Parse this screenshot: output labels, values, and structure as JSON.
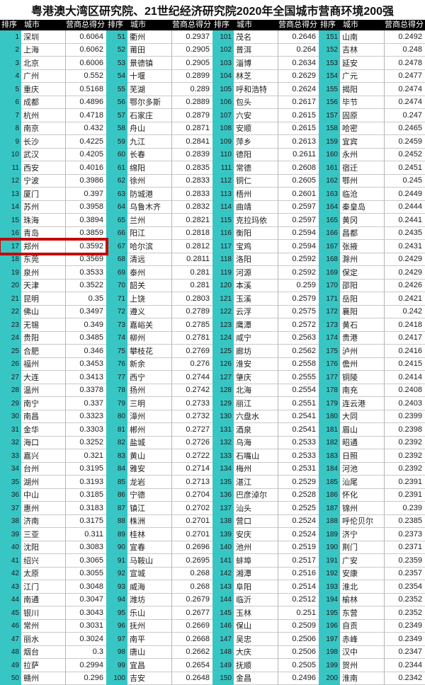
{
  "title": "粤港澳大湾区研究院、21世纪经济研究院2020年全国城市营商环境200强",
  "headers": {
    "rank": "排序",
    "city": "城市",
    "score": "营商总得分"
  },
  "colors": {
    "teal_rank_column": "#38c6c4",
    "header_bg": "#000000",
    "header_text": "#ffffff",
    "row_bg": "#ffffff",
    "highlight_box": "#c40606"
  },
  "highlight": {
    "rank": 17,
    "city": "郑州",
    "score": "0.3592"
  },
  "row_fields": [
    "rank",
    "city",
    "score"
  ],
  "groups": [
    {
      "name": "ranks-1-50",
      "rows": [
        [
          1,
          "深圳",
          "0.6064"
        ],
        [
          2,
          "上海",
          "0.6062"
        ],
        [
          3,
          "北京",
          "0.6006"
        ],
        [
          4,
          "广州",
          "0.552"
        ],
        [
          5,
          "重庆",
          "0.5168"
        ],
        [
          6,
          "成都",
          "0.4896"
        ],
        [
          7,
          "杭州",
          "0.4718"
        ],
        [
          8,
          "南京",
          "0.432"
        ],
        [
          9,
          "长沙",
          "0.4225"
        ],
        [
          10,
          "武汉",
          "0.4205"
        ],
        [
          11,
          "西安",
          "0.4016"
        ],
        [
          12,
          "宁波",
          "0.3986"
        ],
        [
          13,
          "厦门",
          "0.397"
        ],
        [
          14,
          "苏州",
          "0.3958"
        ],
        [
          15,
          "珠海",
          "0.3894"
        ],
        [
          16,
          "青岛",
          "0.3859"
        ],
        [
          17,
          "郑州",
          "0.3592"
        ],
        [
          18,
          "东莞",
          "0.3569"
        ],
        [
          19,
          "泉州",
          "0.3533"
        ],
        [
          20,
          "天津",
          "0.3522"
        ],
        [
          21,
          "昆明",
          "0.35"
        ],
        [
          22,
          "佛山",
          "0.3497"
        ],
        [
          23,
          "无锡",
          "0.349"
        ],
        [
          24,
          "贵阳",
          "0.3485"
        ],
        [
          25,
          "合肥",
          "0.346"
        ],
        [
          26,
          "福州",
          "0.3453"
        ],
        [
          27,
          "大连",
          "0.3413"
        ],
        [
          28,
          "温州",
          "0.3378"
        ],
        [
          29,
          "南宁",
          "0.337"
        ],
        [
          30,
          "南昌",
          "0.3323"
        ],
        [
          31,
          "金华",
          "0.3303"
        ],
        [
          32,
          "海口",
          "0.3252"
        ],
        [
          33,
          "嘉兴",
          "0.321"
        ],
        [
          34,
          "台州",
          "0.3195"
        ],
        [
          35,
          "湖州",
          "0.3193"
        ],
        [
          36,
          "中山",
          "0.3185"
        ],
        [
          37,
          "惠州",
          "0.3183"
        ],
        [
          38,
          "济南",
          "0.3175"
        ],
        [
          39,
          "三亚",
          "0.311"
        ],
        [
          40,
          "沈阳",
          "0.3083"
        ],
        [
          41,
          "绍兴",
          "0.3065"
        ],
        [
          42,
          "太原",
          "0.3055"
        ],
        [
          43,
          "江门",
          "0.3048"
        ],
        [
          44,
          "南通",
          "0.3047"
        ],
        [
          45,
          "银川",
          "0.3043"
        ],
        [
          46,
          "常州",
          "0.3031"
        ],
        [
          47,
          "丽水",
          "0.3024"
        ],
        [
          48,
          "烟台",
          "0.3"
        ],
        [
          49,
          "拉萨",
          "0.2994"
        ],
        [
          50,
          "赣州",
          "0.296"
        ]
      ]
    },
    {
      "name": "ranks-51-100",
      "rows": [
        [
          51,
          "衢州",
          "0.2937"
        ],
        [
          52,
          "莆田",
          "0.2905"
        ],
        [
          53,
          "景德镇",
          "0.2905"
        ],
        [
          54,
          "十堰",
          "0.2899"
        ],
        [
          55,
          "芜湖",
          "0.289"
        ],
        [
          56,
          "鄂尔多斯",
          "0.2889"
        ],
        [
          57,
          "石家庄",
          "0.2879"
        ],
        [
          58,
          "舟山",
          "0.2871"
        ],
        [
          59,
          "九江",
          "0.2841"
        ],
        [
          60,
          "长春",
          "0.2839"
        ],
        [
          61,
          "绵阳",
          "0.2835"
        ],
        [
          62,
          "徐州",
          "0.2833"
        ],
        [
          63,
          "防城港",
          "0.2833"
        ],
        [
          64,
          "乌鲁木齐",
          "0.2832"
        ],
        [
          65,
          "兰州",
          "0.2821"
        ],
        [
          66,
          "阳江",
          "0.2818"
        ],
        [
          67,
          "哈尔滨",
          "0.2812"
        ],
        [
          68,
          "清远",
          "0.2811"
        ],
        [
          69,
          "泰州",
          "0.281"
        ],
        [
          70,
          "韶关",
          "0.281"
        ],
        [
          71,
          "上饶",
          "0.2803"
        ],
        [
          72,
          "遵义",
          "0.2789"
        ],
        [
          73,
          "嘉峪关",
          "0.2785"
        ],
        [
          74,
          "柳州",
          "0.2781"
        ],
        [
          75,
          "攀枝花",
          "0.2769"
        ],
        [
          76,
          "新余",
          "0.276"
        ],
        [
          77,
          "西宁",
          "0.2744"
        ],
        [
          78,
          "扬州",
          "0.2742"
        ],
        [
          79,
          "三明",
          "0.2733"
        ],
        [
          80,
          "漳州",
          "0.2732"
        ],
        [
          81,
          "郴州",
          "0.2727"
        ],
        [
          82,
          "盐城",
          "0.2726"
        ],
        [
          83,
          "黄山",
          "0.2722"
        ],
        [
          84,
          "雅安",
          "0.2714"
        ],
        [
          85,
          "龙岩",
          "0.2713"
        ],
        [
          86,
          "宁德",
          "0.2704"
        ],
        [
          87,
          "镇江",
          "0.2702"
        ],
        [
          88,
          "株洲",
          "0.2701"
        ],
        [
          89,
          "桂林",
          "0.2701"
        ],
        [
          90,
          "宜春",
          "0.2696"
        ],
        [
          91,
          "马鞍山",
          "0.2695"
        ],
        [
          92,
          "宣城",
          "0.268"
        ],
        [
          93,
          "威海",
          "0.268"
        ],
        [
          94,
          "潍坊",
          "0.2679"
        ],
        [
          95,
          "乐山",
          "0.2677"
        ],
        [
          96,
          "抚州",
          "0.2669"
        ],
        [
          97,
          "南平",
          "0.2668"
        ],
        [
          98,
          "唐山",
          "0.2662"
        ],
        [
          99,
          "宜昌",
          "0.2654"
        ],
        [
          100,
          "吉安",
          "0.2648"
        ]
      ]
    },
    {
      "name": "ranks-101-150",
      "rows": [
        [
          101,
          "茂名",
          "0.2646"
        ],
        [
          102,
          "普洱",
          "0.264"
        ],
        [
          103,
          "淄博",
          "0.2634"
        ],
        [
          104,
          "林芝",
          "0.2629"
        ],
        [
          105,
          "呼和浩特",
          "0.2624"
        ],
        [
          106,
          "包头",
          "0.2617"
        ],
        [
          107,
          "六安",
          "0.2615"
        ],
        [
          108,
          "安顺",
          "0.2615"
        ],
        [
          109,
          "萍乡",
          "0.2613"
        ],
        [
          110,
          "德阳",
          "0.2611"
        ],
        [
          111,
          "常德",
          "0.2608"
        ],
        [
          112,
          "铜仁",
          "0.2605"
        ],
        [
          113,
          "梧州",
          "0.2601"
        ],
        [
          114,
          "曲靖",
          "0.2597"
        ],
        [
          115,
          "克拉玛依",
          "0.2597"
        ],
        [
          116,
          "衡阳",
          "0.2594"
        ],
        [
          117,
          "宝鸡",
          "0.2594"
        ],
        [
          118,
          "洛阳",
          "0.2592"
        ],
        [
          119,
          "河源",
          "0.2592"
        ],
        [
          120,
          "本溪",
          "0.259"
        ],
        [
          121,
          "玉溪",
          "0.2579"
        ],
        [
          122,
          "云浮",
          "0.2575"
        ],
        [
          123,
          "鹰潭",
          "0.2572"
        ],
        [
          124,
          "咸宁",
          "0.2563"
        ],
        [
          125,
          "廊坊",
          "0.2562"
        ],
        [
          126,
          "淮安",
          "0.2558"
        ],
        [
          127,
          "肇庆",
          "0.2555"
        ],
        [
          128,
          "北海",
          "0.2554"
        ],
        [
          129,
          "丽江",
          "0.2551"
        ],
        [
          130,
          "六盘水",
          "0.2541"
        ],
        [
          131,
          "酒泉",
          "0.2541"
        ],
        [
          132,
          "乌海",
          "0.2533"
        ],
        [
          133,
          "石嘴山",
          "0.2533"
        ],
        [
          134,
          "梅州",
          "0.2531"
        ],
        [
          135,
          "湛江",
          "0.2529"
        ],
        [
          136,
          "巴彦淖尔",
          "0.2528"
        ],
        [
          137,
          "汕头",
          "0.2525"
        ],
        [
          138,
          "营口",
          "0.2524"
        ],
        [
          139,
          "安庆",
          "0.2524"
        ],
        [
          140,
          "池州",
          "0.2519"
        ],
        [
          141,
          "蚌埠",
          "0.2517"
        ],
        [
          142,
          "湘潭",
          "0.2516"
        ],
        [
          143,
          "阜阳",
          "0.2514"
        ],
        [
          144,
          "临沂",
          "0.2512"
        ],
        [
          145,
          "玉林",
          "0.251"
        ],
        [
          146,
          "保山",
          "0.2509"
        ],
        [
          147,
          "吴忠",
          "0.2506"
        ],
        [
          148,
          "大庆",
          "0.2506"
        ],
        [
          149,
          "抚顺",
          "0.2505"
        ],
        [
          150,
          "金昌",
          "0.2496"
        ]
      ]
    },
    {
      "name": "ranks-151-200",
      "rows": [
        [
          151,
          "山南",
          "0.2492"
        ],
        [
          152,
          "吉林",
          "0.248"
        ],
        [
          153,
          "延安",
          "0.2478"
        ],
        [
          154,
          "广元",
          "0.2477"
        ],
        [
          155,
          "揭阳",
          "0.2474"
        ],
        [
          156,
          "毕节",
          "0.2474"
        ],
        [
          157,
          "固原",
          "0.247"
        ],
        [
          158,
          "哈密",
          "0.2465"
        ],
        [
          159,
          "宜宾",
          "0.2459"
        ],
        [
          160,
          "永州",
          "0.2452"
        ],
        [
          161,
          "宿迁",
          "0.2451"
        ],
        [
          162,
          "鄂州",
          "0.245"
        ],
        [
          163,
          "临沧",
          "0.2449"
        ],
        [
          164,
          "秦皇岛",
          "0.2444"
        ],
        [
          165,
          "黄冈",
          "0.2441"
        ],
        [
          166,
          "昌都",
          "0.2435"
        ],
        [
          167,
          "张掖",
          "0.2431"
        ],
        [
          168,
          "滁州",
          "0.2429"
        ],
        [
          169,
          "保定",
          "0.2429"
        ],
        [
          170,
          "邵阳",
          "0.2426"
        ],
        [
          171,
          "岳阳",
          "0.2421"
        ],
        [
          172,
          "襄阳",
          "0.242"
        ],
        [
          173,
          "黄石",
          "0.2418"
        ],
        [
          174,
          "贵港",
          "0.2417"
        ],
        [
          175,
          "泸州",
          "0.2416"
        ],
        [
          176,
          "儋州",
          "0.2415"
        ],
        [
          177,
          "铜陵",
          "0.2414"
        ],
        [
          178,
          "南充",
          "0.2408"
        ],
        [
          179,
          "连云港",
          "0.2403"
        ],
        [
          180,
          "大同",
          "0.2399"
        ],
        [
          181,
          "眉山",
          "0.2398"
        ],
        [
          182,
          "昭通",
          "0.2392"
        ],
        [
          183,
          "日照",
          "0.2392"
        ],
        [
          184,
          "河池",
          "0.2392"
        ],
        [
          185,
          "汕尾",
          "0.2391"
        ],
        [
          186,
          "怀化",
          "0.2391"
        ],
        [
          187,
          "锦州",
          "0.239"
        ],
        [
          188,
          "呼伦贝尔",
          "0.2385"
        ],
        [
          189,
          "济宁",
          "0.2373"
        ],
        [
          190,
          "荆门",
          "0.2371"
        ],
        [
          191,
          "广安",
          "0.2359"
        ],
        [
          192,
          "安康",
          "0.2357"
        ],
        [
          193,
          "淮北",
          "0.2354"
        ],
        [
          194,
          "榆林",
          "0.2352"
        ],
        [
          195,
          "东营",
          "0.2352"
        ],
        [
          196,
          "自贡",
          "0.2349"
        ],
        [
          197,
          "赤峰",
          "0.2349"
        ],
        [
          198,
          "汉中",
          "0.2347"
        ],
        [
          199,
          "贺州",
          "0.2344"
        ],
        [
          200,
          "淮南",
          "0.2342"
        ]
      ]
    }
  ]
}
